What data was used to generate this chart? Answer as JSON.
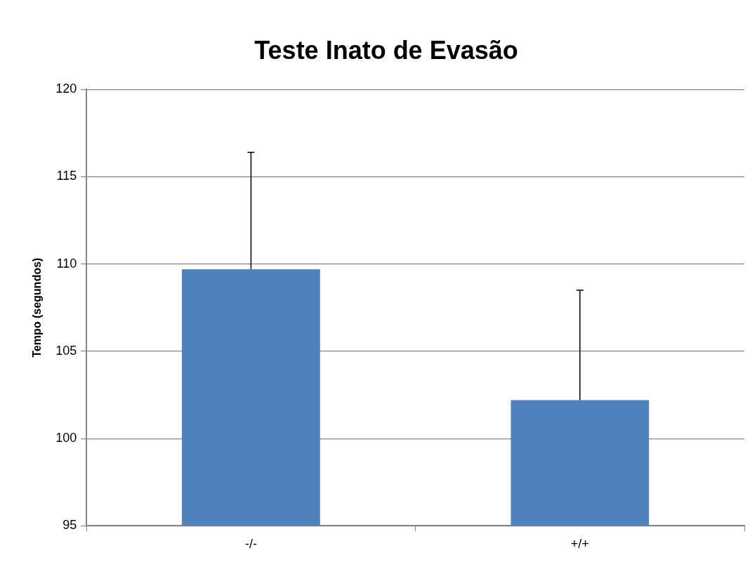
{
  "chart_data": {
    "type": "bar",
    "title": "Teste Inato de Evasão",
    "ylabel": "Tempo (segundos)",
    "categories": [
      "-/-",
      "+/+"
    ],
    "values": [
      109.7,
      102.2
    ],
    "errors": [
      [
        109.7,
        116.4
      ],
      [
        102.2,
        108.5
      ]
    ],
    "color": "#4f81bd",
    "ylim": [
      95,
      120
    ],
    "yticks": [
      95,
      100,
      105,
      110,
      115,
      120
    ],
    "grid": "y",
    "legend": false
  }
}
